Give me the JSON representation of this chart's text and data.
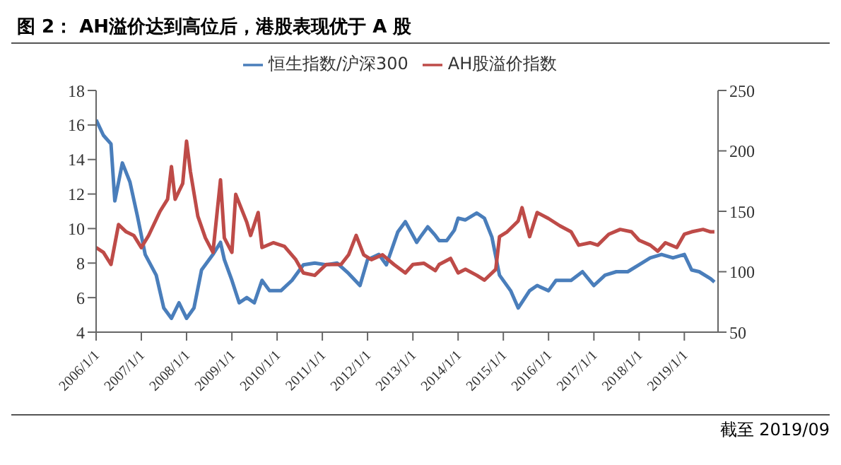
{
  "chart_data": {
    "type": "line",
    "title": "图 2：  AH溢价达到高位后，港股表现优于 A 股",
    "annotations": [
      "截至 2019/09"
    ],
    "legend": "top",
    "marker": "none",
    "line_style": "solid",
    "xlim": [
      "2006-01-01",
      "2019-09-30"
    ],
    "xticks": [
      {
        "value": "2006-01-01",
        "label": "2006/1/1"
      },
      {
        "value": "2007-01-01",
        "label": "2007/1/1"
      },
      {
        "value": "2008-01-01",
        "label": "2008/1/1"
      },
      {
        "value": "2009-01-01",
        "label": "2009/1/1"
      },
      {
        "value": "2010-01-01",
        "label": "2010/1/1"
      },
      {
        "value": "2011-01-01",
        "label": "2011/1/1"
      },
      {
        "value": "2012-01-01",
        "label": "2012/1/1"
      },
      {
        "value": "2013-01-01",
        "label": "2013/1/1"
      },
      {
        "value": "2014-01-01",
        "label": "2014/1/1"
      },
      {
        "value": "2015-01-01",
        "label": "2015/1/1"
      },
      {
        "value": "2016-01-01",
        "label": "2016/1/1"
      },
      {
        "value": "2017-01-01",
        "label": "2017/1/1"
      },
      {
        "value": "2018-01-01",
        "label": "2018/1/1"
      },
      {
        "value": "2019-01-01",
        "label": "2019/1/1"
      }
    ],
    "ylim": [
      4,
      18
    ],
    "yticks": [
      4,
      6,
      8,
      10,
      12,
      14,
      16,
      18
    ],
    "y2lim": [
      50,
      250
    ],
    "y2ticks": [
      50,
      100,
      150,
      200,
      250
    ],
    "series": [
      {
        "name": "恒生指数/沪深300",
        "color": "#4a7ebb",
        "x": [
          "2006-01",
          "2006-03",
          "2006-05",
          "2006-06",
          "2006-08",
          "2006-10",
          "2006-12",
          "2007-02",
          "2007-05",
          "2007-07",
          "2007-09",
          "2007-11",
          "2008-01",
          "2008-03",
          "2008-05",
          "2008-08",
          "2008-10",
          "2008-11",
          "2009-01",
          "2009-03",
          "2009-05",
          "2009-07",
          "2009-09",
          "2009-11",
          "2010-02",
          "2010-05",
          "2010-08",
          "2010-11",
          "2011-02",
          "2011-05",
          "2011-08",
          "2011-11",
          "2012-01",
          "2012-04",
          "2012-06",
          "2012-09",
          "2012-11",
          "2013-02",
          "2013-03",
          "2013-05",
          "2013-07",
          "2013-08",
          "2013-10",
          "2013-12",
          "2014-01",
          "2014-03",
          "2014-06",
          "2014-08",
          "2014-10",
          "2014-12",
          "2015-03",
          "2015-05",
          "2015-08",
          "2015-10",
          "2016-01",
          "2016-03",
          "2016-07",
          "2016-10",
          "2017-01",
          "2017-04",
          "2017-07",
          "2017-10",
          "2018-01",
          "2018-04",
          "2018-07",
          "2018-10",
          "2019-01",
          "2019-03",
          "2019-05",
          "2019-08",
          "2019-09"
        ],
        "values": [
          16.3,
          15.4,
          14.9,
          11.6,
          13.8,
          12.7,
          10.7,
          8.5,
          7.3,
          5.4,
          4.8,
          5.7,
          4.8,
          5.4,
          7.6,
          8.5,
          9.2,
          8.2,
          7.0,
          5.7,
          6.0,
          5.7,
          7.0,
          6.4,
          6.4,
          7.0,
          7.9,
          8.0,
          7.9,
          8.0,
          7.4,
          6.7,
          8.2,
          8.5,
          7.9,
          9.8,
          10.4,
          9.2,
          9.5,
          10.1,
          9.6,
          9.3,
          9.3,
          9.9,
          10.6,
          10.5,
          10.9,
          10.6,
          9.5,
          7.3,
          6.4,
          5.4,
          6.4,
          6.7,
          6.4,
          7.0,
          7.0,
          7.5,
          6.7,
          7.3,
          7.5,
          7.5,
          7.9,
          8.3,
          8.5,
          8.3,
          8.5,
          7.6,
          7.5,
          7.1,
          6.9
        ]
      },
      {
        "name": "AH股溢价指数",
        "color": "#be4b48",
        "axis": "y2",
        "x": [
          "2006-01",
          "2006-03",
          "2006-05",
          "2006-07",
          "2006-09",
          "2006-11",
          "2007-01",
          "2007-03",
          "2007-06",
          "2007-08",
          "2007-09",
          "2007-10",
          "2007-12",
          "2008-01",
          "2008-02",
          "2008-04",
          "2008-06",
          "2008-08",
          "2008-10",
          "2008-11",
          "2009-01",
          "2009-02",
          "2009-05",
          "2009-06",
          "2009-08",
          "2009-09",
          "2009-12",
          "2010-03",
          "2010-06",
          "2010-08",
          "2010-11",
          "2011-02",
          "2011-06",
          "2011-08",
          "2011-10",
          "2011-12",
          "2012-02",
          "2012-05",
          "2012-08",
          "2012-11",
          "2013-01",
          "2013-04",
          "2013-07",
          "2013-08",
          "2013-11",
          "2014-01",
          "2014-03",
          "2014-06",
          "2014-08",
          "2014-11",
          "2014-12",
          "2015-02",
          "2015-05",
          "2015-06",
          "2015-08",
          "2015-10",
          "2016-01",
          "2016-04",
          "2016-07",
          "2016-09",
          "2016-12",
          "2017-02",
          "2017-05",
          "2017-08",
          "2017-11",
          "2018-01",
          "2018-04",
          "2018-06",
          "2018-08",
          "2018-11",
          "2019-01",
          "2019-03",
          "2019-06",
          "2019-08",
          "2019-09"
        ],
        "values": [
          120,
          116,
          106,
          139,
          133,
          130,
          120,
          130,
          150,
          160,
          187,
          160,
          173,
          208,
          183,
          146,
          128,
          116,
          176,
          128,
          116,
          164,
          141,
          130,
          149,
          120,
          124,
          121,
          110,
          99,
          97,
          106,
          106,
          114,
          130,
          114,
          110,
          114,
          106,
          99,
          106,
          107,
          101,
          106,
          111,
          99,
          102,
          97,
          93,
          102,
          129,
          133,
          142,
          153,
          129,
          149,
          144,
          138,
          133,
          122,
          124,
          122,
          131,
          135,
          133,
          126,
          122,
          117,
          124,
          120,
          131,
          133,
          135,
          133,
          133
        ]
      }
    ]
  }
}
